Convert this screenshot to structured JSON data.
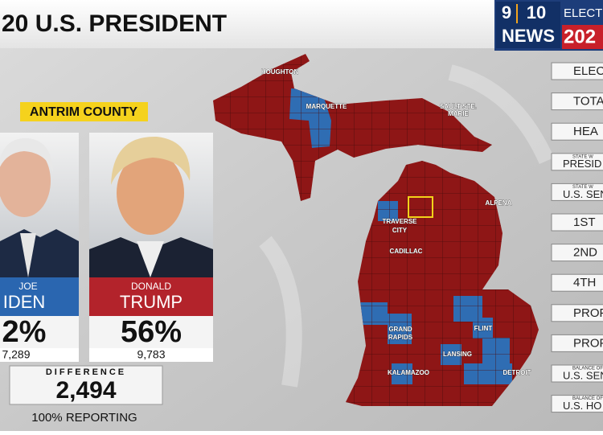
{
  "header": {
    "title": "20 U.S. PRESIDENT",
    "logo": {
      "num_left": "9",
      "num_right": "10",
      "word": "NEWS",
      "election": "ELECTI",
      "year": "202"
    }
  },
  "county": "ANTRIM COUNTY",
  "candidates": [
    {
      "first": "JOE",
      "last": "IDEN",
      "percent": "2%",
      "votes": "7,289"
    },
    {
      "first": "DONALD",
      "last": "TRUMP",
      "percent": "56%",
      "votes": "9,783"
    }
  ],
  "difference": {
    "label": "DIFFERENCE",
    "value": "2,494"
  },
  "reporting": "100% REPORTING",
  "map_labels": [
    "HOUGHTON",
    "MARQUETTE",
    "SAULT STE.",
    "MARIE",
    "TRAVERSE",
    "CITY",
    "ALPENA",
    "CADILLAC",
    "GRAND",
    "RAPIDS",
    "FLINT",
    "LANSING",
    "KALAMAZOO",
    "DETROIT"
  ],
  "menu": [
    {
      "label": "ELECTO"
    },
    {
      "label": "TOTA"
    },
    {
      "label": "HEA"
    },
    {
      "small": "STATE W",
      "label": "PRESID"
    },
    {
      "small": "STATE W",
      "label": "U.S. SEN"
    },
    {
      "label": "1ST"
    },
    {
      "label": "2ND"
    },
    {
      "label": "4TH"
    },
    {
      "label": "PROP"
    },
    {
      "label": "PROP"
    },
    {
      "small": "BALANCE OF",
      "label": "U.S. SEN"
    },
    {
      "small": "BALANCE OF",
      "label": "U.S. HO"
    }
  ]
}
